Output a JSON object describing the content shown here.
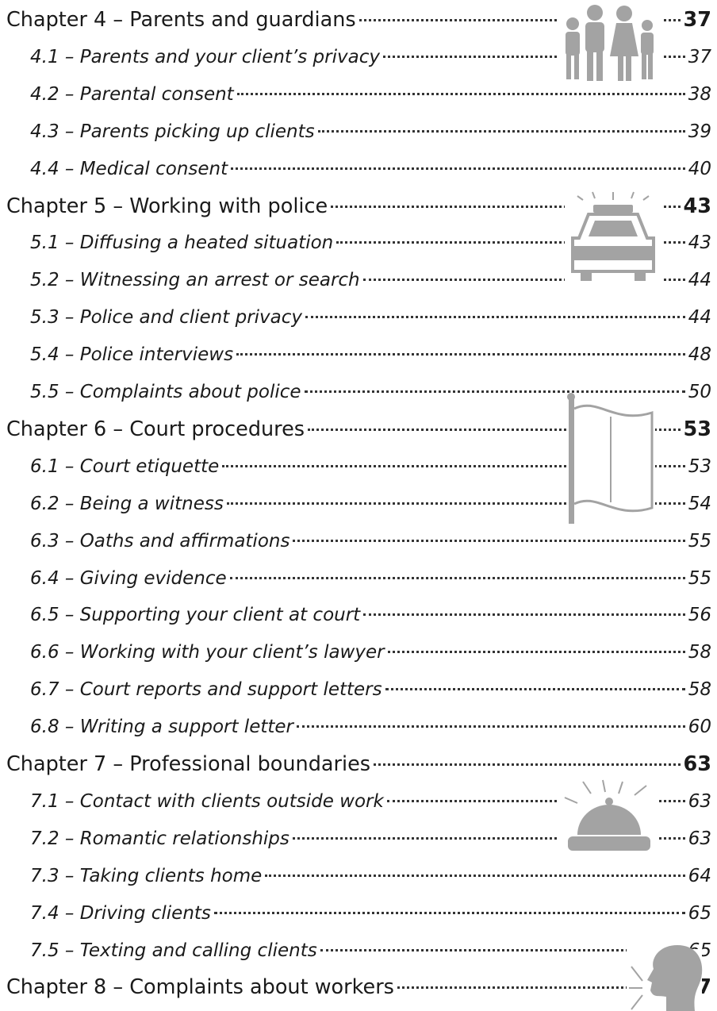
{
  "chapters": [
    {
      "title": "Chapter 4 – Parents and guardians",
      "page": 37,
      "sections": [
        {
          "title": "4.1 – Parents and your client’s privacy",
          "page": 37
        },
        {
          "title": "4.2 – Parental consent",
          "page": 38
        },
        {
          "title": "4.3 – Parents picking up clients",
          "page": 39
        },
        {
          "title": "4.4 – Medical consent",
          "page": 40
        }
      ]
    },
    {
      "title": "Chapter 5 – Working with police",
      "page": 43,
      "sections": [
        {
          "title": "5.1 – Diffusing a heated situation",
          "page": 43
        },
        {
          "title": "5.2 – Witnessing an arrest or search",
          "page": 44
        },
        {
          "title": "5.3 – Police and client privacy",
          "page": 44
        },
        {
          "title": "5.4 – Police interviews",
          "page": 48
        },
        {
          "title": "5.5 – Complaints about police",
          "page": 50
        }
      ]
    },
    {
      "title": "Chapter 6 – Court procedures",
      "page": 53,
      "sections": [
        {
          "title": "6.1 – Court etiquette",
          "page": 53
        },
        {
          "title": "6.2 – Being a witness",
          "page": 54
        },
        {
          "title": "6.3 – Oaths and affirmations",
          "page": 55
        },
        {
          "title": "6.4 – Giving evidence",
          "page": 55
        },
        {
          "title": "6.5 – Supporting your client at court",
          "page": 56
        },
        {
          "title": "6.6 – Working with your client’s lawyer",
          "page": 58
        },
        {
          "title": "6.7 – Court reports and support letters",
          "page": 58
        },
        {
          "title": "6.8 – Writing a support letter",
          "page": 60
        }
      ]
    },
    {
      "title": "Chapter 7 – Professional boundaries",
      "page": 63,
      "sections": [
        {
          "title": "7.1 – Contact with clients outside work",
          "page": 63
        },
        {
          "title": "7.2 – Romantic relationships",
          "page": 63
        },
        {
          "title": "7.3 – Taking clients home",
          "page": 64
        },
        {
          "title": "7.4 – Driving clients",
          "page": 65
        },
        {
          "title": "7.5 – Texting and calling clients",
          "page": 65
        }
      ]
    },
    {
      "title": "Chapter 8 – Complaints about workers",
      "page": 67,
      "sections": []
    }
  ]
}
